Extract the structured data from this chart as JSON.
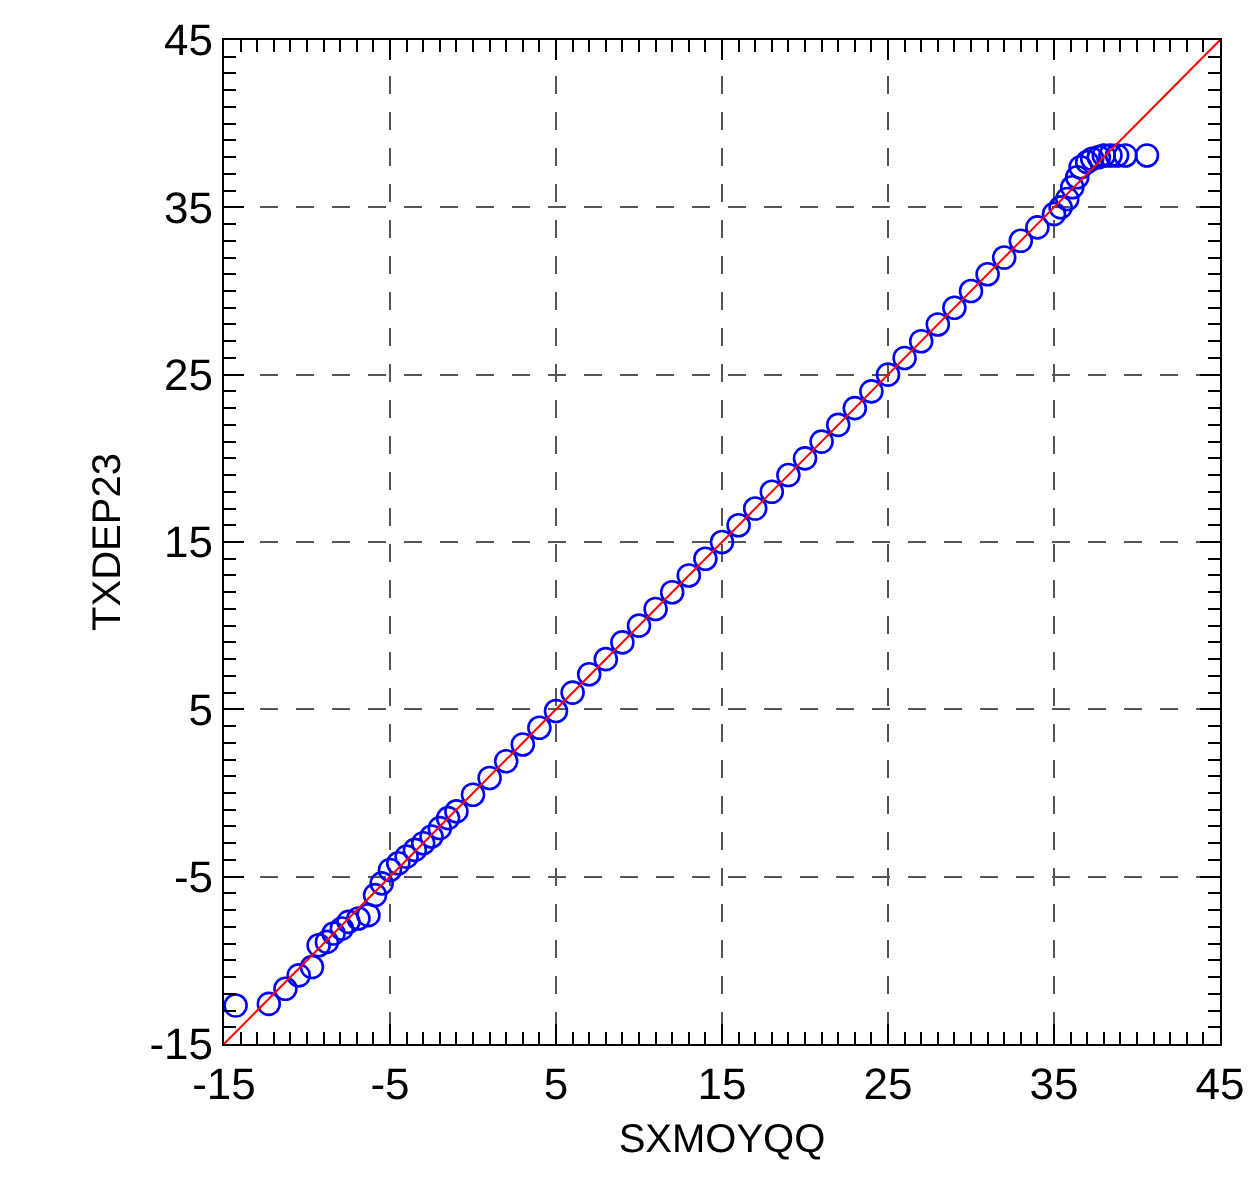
{
  "chart_data": {
    "type": "scatter",
    "xlabel": "SXMOYQQ",
    "ylabel": "TXDEP23",
    "xlim": [
      -15,
      45
    ],
    "ylim": [
      -15,
      45
    ],
    "xticks": [
      -15,
      -5,
      5,
      15,
      25,
      35,
      45
    ],
    "yticks": [
      -15,
      -5,
      5,
      15,
      25,
      35,
      45
    ],
    "grid": true,
    "marker": "circle",
    "series": [
      {
        "color": "#0000ff",
        "x": [
          -14.3,
          -12.3,
          -11.3,
          -10.5,
          -9.7,
          -9.3,
          -8.8,
          -8.4,
          -7.9,
          -7.5,
          -6.9,
          -6.3,
          -5.9,
          -5.5,
          -5,
          -4.5,
          -4,
          -3.5,
          -3,
          -2.5,
          -2,
          -1.5,
          -1,
          0,
          1,
          2,
          3,
          4,
          5,
          6,
          7,
          8,
          9,
          10,
          11,
          12,
          13,
          14,
          15,
          16,
          17,
          18,
          19,
          20,
          21,
          22,
          23,
          24,
          25,
          26,
          27,
          28,
          29,
          30,
          31,
          32,
          33,
          34,
          35,
          35.4,
          35.8,
          36.1,
          36.4,
          36.6,
          37,
          37.3,
          37.7,
          38,
          38.4,
          38.8,
          39.3,
          40.6
        ],
        "values": [
          -12.7,
          -12.6,
          -11.7,
          -10.9,
          -10.4,
          -9.1,
          -8.9,
          -8.4,
          -8.1,
          -7.7,
          -7.5,
          -7.3,
          -6.1,
          -5.4,
          -4.6,
          -4.2,
          -3.8,
          -3.4,
          -3,
          -2.6,
          -2.1,
          -1.5,
          -1.1,
          -0.1,
          0.9,
          1.9,
          2.9,
          3.9,
          4.9,
          6,
          7.1,
          8,
          9,
          10,
          11,
          12,
          13,
          14,
          15,
          16,
          17,
          18,
          19,
          20,
          21,
          22,
          23,
          24,
          25,
          26,
          27,
          28,
          29,
          30,
          31,
          32,
          33,
          33.8,
          34.6,
          35,
          35.5,
          36.2,
          36.8,
          37.4,
          37.7,
          37.9,
          38,
          38.1,
          38.1,
          38.1,
          38.1,
          38.1
        ]
      },
      {
        "type": "line",
        "color": "#ff0000",
        "marker": "none",
        "x": [
          -15,
          45
        ],
        "values": [
          -15,
          45
        ]
      }
    ]
  }
}
